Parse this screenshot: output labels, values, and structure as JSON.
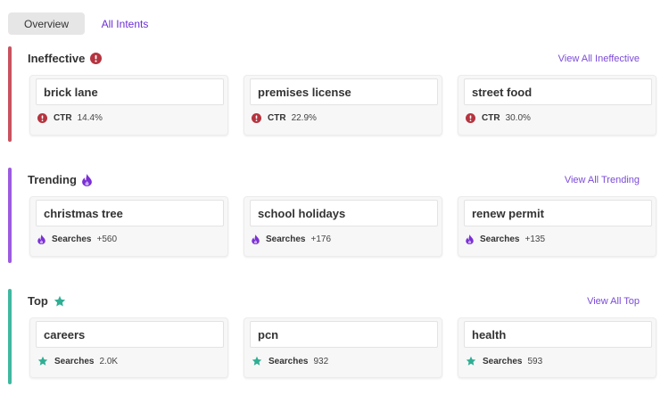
{
  "tabs": {
    "overview": "Overview",
    "all_intents": "All Intents"
  },
  "colors": {
    "ineffective": "#c9525e",
    "trending": "#9b5be0",
    "top": "#3fb8a0",
    "accent": "#7b4bd8"
  },
  "sections": {
    "ineffective": {
      "title": "Ineffective",
      "icon": "error-icon",
      "view_all": "View All Ineffective",
      "cards": [
        {
          "term": "brick lane",
          "metric_label": "CTR",
          "metric_value": "14.4%"
        },
        {
          "term": "premises license",
          "metric_label": "CTR",
          "metric_value": "22.9%"
        },
        {
          "term": "street food",
          "metric_label": "CTR",
          "metric_value": "30.0%"
        }
      ]
    },
    "trending": {
      "title": "Trending",
      "icon": "flame-icon",
      "view_all": "View All Trending",
      "cards": [
        {
          "term": "christmas tree",
          "metric_label": "Searches",
          "metric_value": "+560"
        },
        {
          "term": "school holidays",
          "metric_label": "Searches",
          "metric_value": "+176"
        },
        {
          "term": "renew permit",
          "metric_label": "Searches",
          "metric_value": "+135"
        }
      ]
    },
    "top": {
      "title": "Top",
      "icon": "star-icon",
      "view_all": "View All Top",
      "cards": [
        {
          "term": "careers",
          "metric_label": "Searches",
          "metric_value": "2.0K"
        },
        {
          "term": "pcn",
          "metric_label": "Searches",
          "metric_value": "932"
        },
        {
          "term": "health",
          "metric_label": "Searches",
          "metric_value": "593"
        }
      ]
    }
  }
}
